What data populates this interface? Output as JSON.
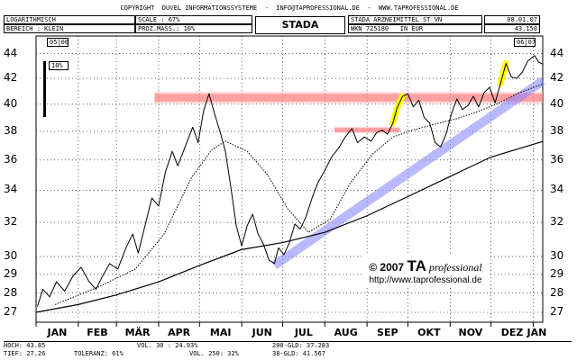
{
  "header": {
    "copyright": "COPYRIGHT  DUVEL INFORMATIONSSYSTEME  -  INFO@TAPROFESSIONAL.DE  -  WWW.TAPROFESSIONAL.DE",
    "scale_type": "LOGARITHMISCH",
    "range": "BEREICH : KLEIN",
    "scale": "SCALE : 67%",
    "prozmass": "PROZ.MASS.: 10%",
    "chart_title": "STADA",
    "company": "STADA ARZNEIMITTEL ST VN",
    "date": "08.01.07",
    "wkn": "WKN 725180   IN EUR",
    "last_price": "43.150",
    "year_left": "05|06",
    "year_right": "06|07",
    "scale_marker": "10%"
  },
  "logo": {
    "line1": "© 2007 ",
    "brand": "TA",
    "brand_suffix": " professional",
    "url": "http://www.taprofessional.de"
  },
  "stats": {
    "hoch": "HOCH: 43.85",
    "tief": "TIEF: 27.26",
    "vol30": "VOL. 30 : 24.93%",
    "vol250": "VOL. 250: 32%",
    "toleranz": "TOLERANZ: 61%",
    "gld200": "200-GLD: 37.283",
    "gld38": "38-GLD: 41.567"
  },
  "colors": {
    "resistance": "#ff8080",
    "channel": "#8080ff",
    "highlight": "#ffff00",
    "price": "#000000"
  },
  "chart_data": {
    "type": "line",
    "scale": "log",
    "ylim": [
      26.5,
      45.5
    ],
    "y_ticks": [
      27,
      28,
      29,
      30,
      32,
      34,
      36,
      38,
      40,
      42,
      44
    ],
    "months": [
      "JAN",
      "FEB",
      "MÄR",
      "APR",
      "MAI",
      "JUN",
      "JUL",
      "AUG",
      "SEP",
      "OKT",
      "NOV",
      "DEZ",
      "JAN"
    ],
    "x_range": [
      "2006-01-01",
      "2007-01-08"
    ],
    "series": [
      {
        "key": "price",
        "points": [
          [
            "2006-01-02",
            27.3
          ],
          [
            "2006-01-06",
            28.2
          ],
          [
            "2006-01-11",
            27.8
          ],
          [
            "2006-01-16",
            28.6
          ],
          [
            "2006-01-22",
            28.1
          ],
          [
            "2006-01-28",
            28.9
          ],
          [
            "2006-02-03",
            29.4
          ],
          [
            "2006-02-09",
            28.6
          ],
          [
            "2006-02-14",
            28.2
          ],
          [
            "2006-02-18",
            28.8
          ],
          [
            "2006-02-24",
            29.6
          ],
          [
            "2006-03-02",
            29.3
          ],
          [
            "2006-03-08",
            30.5
          ],
          [
            "2006-03-13",
            31.3
          ],
          [
            "2006-03-17",
            30.2
          ],
          [
            "2006-03-22",
            31.8
          ],
          [
            "2006-03-27",
            33.5
          ],
          [
            "2006-04-01",
            33.0
          ],
          [
            "2006-04-06",
            35.2
          ],
          [
            "2006-04-11",
            36.6
          ],
          [
            "2006-04-15",
            35.6
          ],
          [
            "2006-04-20",
            36.8
          ],
          [
            "2006-04-26",
            38.3
          ],
          [
            "2006-04-30",
            37.2
          ],
          [
            "2006-05-04",
            39.5
          ],
          [
            "2006-05-08",
            40.8
          ],
          [
            "2006-05-12",
            39.3
          ],
          [
            "2006-05-16",
            38.0
          ],
          [
            "2006-05-20",
            36.6
          ],
          [
            "2006-05-24",
            34.2
          ],
          [
            "2006-05-28",
            31.8
          ],
          [
            "2006-06-01",
            30.6
          ],
          [
            "2006-06-05",
            31.8
          ],
          [
            "2006-06-09",
            32.5
          ],
          [
            "2006-06-13",
            31.3
          ],
          [
            "2006-06-17",
            30.7
          ],
          [
            "2006-06-21",
            29.8
          ],
          [
            "2006-06-25",
            29.6
          ],
          [
            "2006-06-28",
            30.5
          ],
          [
            "2006-07-02",
            30.1
          ],
          [
            "2006-07-06",
            30.8
          ],
          [
            "2006-07-10",
            31.9
          ],
          [
            "2006-07-14",
            31.6
          ],
          [
            "2006-07-18",
            32.3
          ],
          [
            "2006-07-23",
            33.6
          ],
          [
            "2006-07-27",
            34.5
          ],
          [
            "2006-08-01",
            35.3
          ],
          [
            "2006-08-06",
            36.2
          ],
          [
            "2006-08-11",
            36.8
          ],
          [
            "2006-08-16",
            37.6
          ],
          [
            "2006-08-21",
            38.2
          ],
          [
            "2006-08-25",
            37.2
          ],
          [
            "2006-08-30",
            37.6
          ],
          [
            "2006-09-04",
            37.3
          ],
          [
            "2006-09-08",
            37.9
          ],
          [
            "2006-09-12",
            38.1
          ],
          [
            "2006-09-16",
            37.8
          ],
          [
            "2006-09-20",
            38.6
          ],
          [
            "2006-09-23",
            39.7
          ],
          [
            "2006-09-27",
            40.6
          ],
          [
            "2006-10-01",
            40.8
          ],
          [
            "2006-10-05",
            39.8
          ],
          [
            "2006-10-09",
            40.3
          ],
          [
            "2006-10-13",
            39.0
          ],
          [
            "2006-10-17",
            38.6
          ],
          [
            "2006-10-21",
            37.2
          ],
          [
            "2006-10-25",
            36.9
          ],
          [
            "2006-10-29",
            37.8
          ],
          [
            "2006-11-02",
            39.3
          ],
          [
            "2006-11-06",
            40.4
          ],
          [
            "2006-11-10",
            39.6
          ],
          [
            "2006-11-14",
            39.9
          ],
          [
            "2006-11-18",
            40.6
          ],
          [
            "2006-11-22",
            39.8
          ],
          [
            "2006-11-26",
            40.9
          ],
          [
            "2006-11-30",
            41.3
          ],
          [
            "2006-12-04",
            40.1
          ],
          [
            "2006-12-08",
            41.6
          ],
          [
            "2006-12-12",
            43.2
          ],
          [
            "2006-12-16",
            42.1
          ],
          [
            "2006-12-20",
            42.0
          ],
          [
            "2006-12-24",
            42.5
          ],
          [
            "2006-12-28",
            43.4
          ],
          [
            "2007-01-02",
            43.85
          ],
          [
            "2007-01-05",
            43.3
          ],
          [
            "2007-01-08",
            43.15
          ]
        ]
      },
      {
        "key": "gld38",
        "points": [
          [
            "2006-01-15",
            27.4
          ],
          [
            "2006-02-15",
            28.3
          ],
          [
            "2006-03-15",
            29.3
          ],
          [
            "2006-04-05",
            31.3
          ],
          [
            "2006-04-25",
            34.8
          ],
          [
            "2006-05-10",
            36.7
          ],
          [
            "2006-05-20",
            37.3
          ],
          [
            "2006-06-05",
            36.6
          ],
          [
            "2006-06-20",
            35.0
          ],
          [
            "2006-07-05",
            32.8
          ],
          [
            "2006-07-20",
            31.4
          ],
          [
            "2006-08-05",
            32.2
          ],
          [
            "2006-08-20",
            34.5
          ],
          [
            "2006-09-05",
            36.4
          ],
          [
            "2006-09-20",
            37.6
          ],
          [
            "2006-10-05",
            38.1
          ],
          [
            "2006-10-20",
            38.5
          ],
          [
            "2006-11-05",
            38.9
          ],
          [
            "2006-11-20",
            39.4
          ],
          [
            "2006-12-05",
            40.0
          ],
          [
            "2006-12-20",
            40.8
          ],
          [
            "2007-01-08",
            41.56
          ]
        ]
      },
      {
        "key": "gld200",
        "points": [
          [
            "2006-01-01",
            27.0
          ],
          [
            "2006-02-01",
            27.4
          ],
          [
            "2006-03-01",
            27.9
          ],
          [
            "2006-04-01",
            28.6
          ],
          [
            "2006-05-01",
            29.5
          ],
          [
            "2006-06-01",
            30.4
          ],
          [
            "2006-07-01",
            30.8
          ],
          [
            "2006-08-01",
            31.4
          ],
          [
            "2006-09-01",
            32.4
          ],
          [
            "2006-10-01",
            33.6
          ],
          [
            "2006-11-01",
            34.9
          ],
          [
            "2006-12-01",
            36.2
          ],
          [
            "2007-01-08",
            37.28
          ]
        ]
      }
    ],
    "resistance_zones": [
      {
        "from": "2006-03-29",
        "to": "2007-01-08",
        "low": 39.9,
        "high": 41.1
      },
      {
        "from": "2006-08-08",
        "to": "2006-09-25",
        "low": 37.8,
        "high": 38.4
      }
    ],
    "trend_channel": {
      "from": [
        "2006-06-25",
        29.5
      ],
      "to": [
        "2007-01-08",
        41.8
      ]
    },
    "highlights": [
      {
        "from": "2006-09-19",
        "to": "2006-09-27"
      },
      {
        "from": "2006-12-05",
        "to": "2006-12-12"
      }
    ]
  }
}
